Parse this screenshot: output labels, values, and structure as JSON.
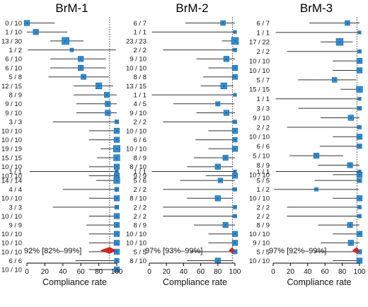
{
  "colors": {
    "marker": "#2e8fd6",
    "marker_edge": "#1d5f92",
    "ci_line": "#333333",
    "diamond": "#d9231f",
    "ref_line": "#333333"
  },
  "chart_data": [
    {
      "type": "forest",
      "title": "BrM-1",
      "xlabel": "Compliance rate",
      "xticks": [
        0,
        20,
        40,
        60,
        80,
        100
      ],
      "xlim": [
        0,
        100
      ],
      "summary_label": "92% [82%–99%]",
      "summary": {
        "est": 92,
        "lo": 82,
        "hi": 99
      },
      "ref": 92,
      "groups": [
        {
          "rows": [
            {
              "label": "0 / 10",
              "est": 0,
              "lo": 0,
              "hi": 31
            },
            {
              "label": "1 / 10",
              "est": 10,
              "lo": 0,
              "hi": 45
            },
            {
              "label": "13 / 30",
              "est": 43,
              "lo": 26,
              "hi": 63
            },
            {
              "label": "1 / 2",
              "est": 50,
              "lo": 1,
              "hi": 99
            },
            {
              "label": "6 / 10",
              "est": 60,
              "lo": 26,
              "hi": 88
            },
            {
              "label": "6 / 10",
              "est": 60,
              "lo": 26,
              "hi": 88
            },
            {
              "label": "5 / 8",
              "est": 63,
              "lo": 24,
              "hi": 91
            },
            {
              "label": "12 / 15",
              "est": 80,
              "lo": 52,
              "hi": 96
            },
            {
              "label": "8 / 9",
              "est": 89,
              "lo": 52,
              "hi": 100
            },
            {
              "label": "9 / 10",
              "est": 90,
              "lo": 55,
              "hi": 100
            },
            {
              "label": "9 / 10",
              "est": 90,
              "lo": 55,
              "hi": 100
            },
            {
              "label": "3 / 3",
              "est": 100,
              "lo": 29,
              "hi": 100
            },
            {
              "label": "10 / 10",
              "est": 100,
              "lo": 69,
              "hi": 100
            },
            {
              "label": "10 / 10",
              "est": 100,
              "lo": 69,
              "hi": 100
            },
            {
              "label": "19 / 19",
              "est": 100,
              "lo": 82,
              "hi": 100
            },
            {
              "label": "15 / 15",
              "est": 100,
              "lo": 78,
              "hi": 100
            },
            {
              "label": "10 / 10",
              "est": 100,
              "lo": 69,
              "hi": 100
            },
            {
              "label": "10 / 10",
              "est": 100,
              "lo": 69,
              "hi": 100
            }
          ]
        },
        {
          "rows": [
            {
              "label": "1 / 1",
              "est": 100,
              "lo": 3,
              "hi": 100
            },
            {
              "label": "14 / 14",
              "est": 100,
              "lo": 77,
              "hi": 100
            },
            {
              "label": "4 / 4",
              "est": 100,
              "lo": 40,
              "hi": 100
            },
            {
              "label": "10 / 10",
              "est": 100,
              "lo": 69,
              "hi": 100
            },
            {
              "label": "3 / 3",
              "est": 100,
              "lo": 29,
              "hi": 100
            },
            {
              "label": "10 / 10",
              "est": 100,
              "lo": 69,
              "hi": 100
            },
            {
              "label": "9 / 9",
              "est": 100,
              "lo": 66,
              "hi": 100
            },
            {
              "label": "10 / 10",
              "est": 100,
              "lo": 69,
              "hi": 100
            },
            {
              "label": "10 / 10",
              "est": 100,
              "lo": 69,
              "hi": 100
            },
            {
              "label": "10 / 10",
              "est": 100,
              "lo": 69,
              "hi": 100
            },
            {
              "label": "6 / 6",
              "est": 100,
              "lo": 54,
              "hi": 100
            },
            {
              "label": "10 / 10",
              "est": 100,
              "lo": 69,
              "hi": 100
            }
          ]
        }
      ]
    },
    {
      "type": "forest",
      "title": "BrM-2",
      "xlabel": "Compliance rate",
      "xticks": [
        0,
        20,
        40,
        60,
        80,
        100
      ],
      "xlim": [
        0,
        100
      ],
      "summary_label": "97% [93%–99%]",
      "summary": {
        "est": 97,
        "lo": 93,
        "hi": 99
      },
      "ref": 97,
      "groups": [
        {
          "rows": [
            {
              "label": "6 / 7",
              "est": 86,
              "lo": 42,
              "hi": 100
            },
            {
              "label": "1 / 1",
              "est": 100,
              "lo": 3,
              "hi": 100
            },
            {
              "label": "23 / 23",
              "est": 100,
              "lo": 85,
              "hi": 100
            },
            {
              "label": "2 / 2",
              "est": 100,
              "lo": 16,
              "hi": 100
            },
            {
              "label": "9 / 10",
              "est": 90,
              "lo": 55,
              "hi": 100
            },
            {
              "label": "10 / 10",
              "est": 100,
              "lo": 69,
              "hi": 100
            },
            {
              "label": "8 / 8",
              "est": 100,
              "lo": 63,
              "hi": 100
            },
            {
              "label": "13 / 15",
              "est": 87,
              "lo": 60,
              "hi": 98
            },
            {
              "label": "1 / 1",
              "est": 100,
              "lo": 3,
              "hi": 100
            },
            {
              "label": "4 / 5",
              "est": 80,
              "lo": 28,
              "hi": 99
            },
            {
              "label": "9 / 10",
              "est": 90,
              "lo": 55,
              "hi": 100
            },
            {
              "label": "2 / 2",
              "est": 100,
              "lo": 16,
              "hi": 100
            },
            {
              "label": "10 / 10",
              "est": 100,
              "lo": 69,
              "hi": 100
            },
            {
              "label": "6 / 6",
              "est": 100,
              "lo": 54,
              "hi": 100
            },
            {
              "label": "10 / 10",
              "est": 100,
              "lo": 69,
              "hi": 100
            },
            {
              "label": "8 / 9",
              "est": 89,
              "lo": 52,
              "hi": 100
            },
            {
              "label": "8 / 10",
              "est": 80,
              "lo": 44,
              "hi": 97
            },
            {
              "label": "9 / 9",
              "est": 100,
              "lo": 66,
              "hi": 100
            }
          ]
        },
        {
          "rows": [
            {
              "label": "1 / 1",
              "est": 100,
              "lo": 3,
              "hi": 100
            },
            {
              "label": "5 / 6",
              "est": 83,
              "lo": 36,
              "hi": 100
            },
            {
              "label": "2 / 2",
              "est": 100,
              "lo": 16,
              "hi": 100
            },
            {
              "label": "8 / 10",
              "est": 80,
              "lo": 44,
              "hi": 97
            },
            {
              "label": "2 / 2",
              "est": 100,
              "lo": 16,
              "hi": 100
            },
            {
              "label": "2 / 2",
              "est": 100,
              "lo": 16,
              "hi": 100
            },
            {
              "label": "8 / 9",
              "est": 89,
              "lo": 52,
              "hi": 100
            },
            {
              "label": "10 / 10",
              "est": 100,
              "lo": 69,
              "hi": 100
            },
            {
              "label": "10 / 10",
              "est": 100,
              "lo": 69,
              "hi": 100
            },
            {
              "label": "5 / 5",
              "est": 100,
              "lo": 48,
              "hi": 100
            },
            {
              "label": "8 / 10",
              "est": 80,
              "lo": 44,
              "hi": 97
            }
          ]
        }
      ]
    },
    {
      "type": "forest",
      "title": "BrM-3",
      "xlabel": "Compliance rate",
      "xticks": [
        0,
        20,
        40,
        60,
        80,
        100
      ],
      "xlim": [
        0,
        100
      ],
      "summary_label": "97% [92%–99%]",
      "summary": {
        "est": 97,
        "lo": 92,
        "hi": 99
      },
      "ref": 97,
      "groups": [
        {
          "rows": [
            {
              "label": "6 / 7",
              "est": 86,
              "lo": 42,
              "hi": 100
            },
            {
              "label": "1 / 1",
              "est": 100,
              "lo": 3,
              "hi": 100
            },
            {
              "label": "17 / 22",
              "est": 77,
              "lo": 55,
              "hi": 92
            },
            {
              "label": "2 / 2",
              "est": 100,
              "lo": 16,
              "hi": 100
            },
            {
              "label": "10 / 10",
              "est": 100,
              "lo": 69,
              "hi": 100
            },
            {
              "label": "10 / 10",
              "est": 100,
              "lo": 69,
              "hi": 100
            },
            {
              "label": "5 / 7",
              "est": 71,
              "lo": 29,
              "hi": 96
            },
            {
              "label": "15 / 15",
              "est": 100,
              "lo": 78,
              "hi": 100
            },
            {
              "label": "1 / 1",
              "est": 100,
              "lo": 3,
              "hi": 100
            },
            {
              "label": "3 / 3",
              "est": 100,
              "lo": 29,
              "hi": 100
            },
            {
              "label": "9 / 10",
              "est": 90,
              "lo": 55,
              "hi": 100
            },
            {
              "label": "2 / 2",
              "est": 100,
              "lo": 16,
              "hi": 100
            },
            {
              "label": "10 / 10",
              "est": 100,
              "lo": 69,
              "hi": 100
            },
            {
              "label": "6 / 6",
              "est": 100,
              "lo": 54,
              "hi": 100
            },
            {
              "label": "5 / 10",
              "est": 50,
              "lo": 19,
              "hi": 81
            },
            {
              "label": "8 / 9",
              "est": 89,
              "lo": 52,
              "hi": 100
            },
            {
              "label": "10 / 10",
              "est": 100,
              "lo": 69,
              "hi": 100
            }
          ]
        },
        {
          "rows": [
            {
              "label": "1 / 1",
              "est": 100,
              "lo": 3,
              "hi": 100
            },
            {
              "label": "5 / 5",
              "est": 100,
              "lo": 48,
              "hi": 100
            },
            {
              "label": "1 / 2",
              "est": 50,
              "lo": 1,
              "hi": 99
            },
            {
              "label": "10 / 10",
              "est": 100,
              "lo": 69,
              "hi": 100
            },
            {
              "label": "2 / 2",
              "est": 100,
              "lo": 16,
              "hi": 100
            },
            {
              "label": "2 / 2",
              "est": 100,
              "lo": 16,
              "hi": 100
            },
            {
              "label": "8 / 9",
              "est": 89,
              "lo": 52,
              "hi": 100
            },
            {
              "label": "10 / 10",
              "est": 100,
              "lo": 69,
              "hi": 100
            },
            {
              "label": "9 / 10",
              "est": 90,
              "lo": 55,
              "hi": 100
            },
            {
              "label": "5 / 5",
              "est": 100,
              "lo": 48,
              "hi": 100
            },
            {
              "label": "10 / 10",
              "est": 100,
              "lo": 69,
              "hi": 100
            }
          ]
        }
      ]
    }
  ]
}
